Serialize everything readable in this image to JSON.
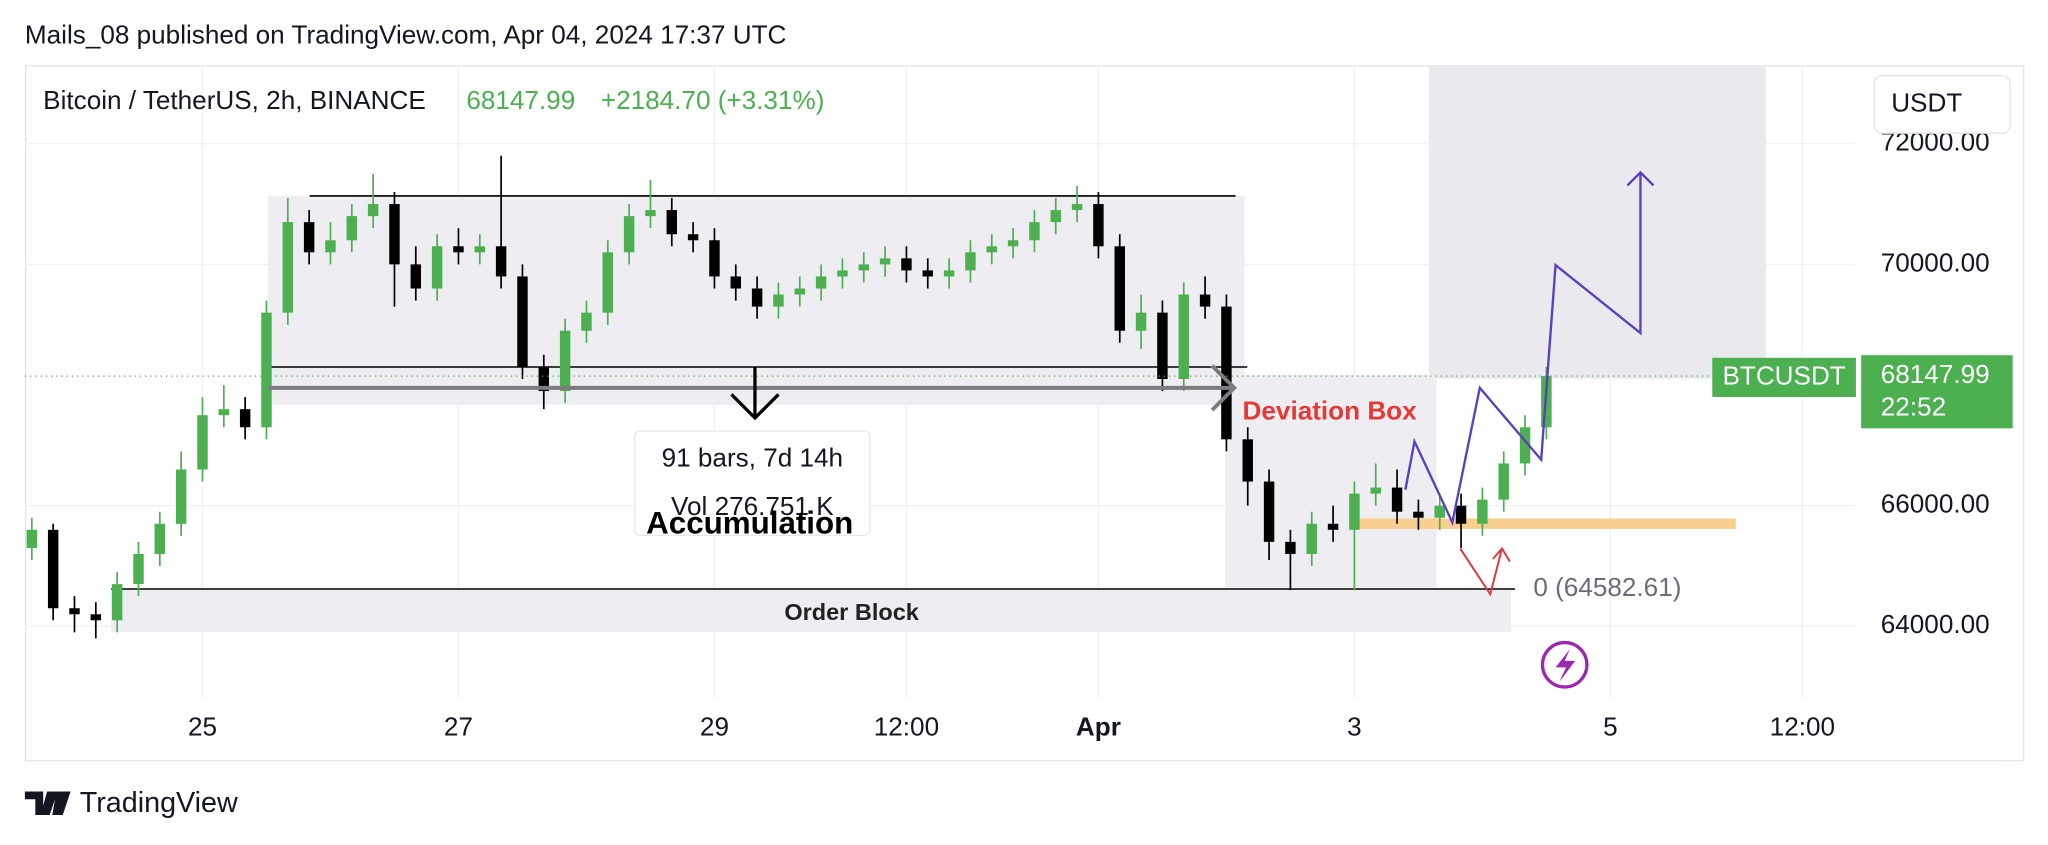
{
  "header": {
    "published": "Mails_08 published on TradingView.com, Apr 04, 2024 17:37 UTC"
  },
  "chart_data": {
    "type": "candlestick",
    "symbol": "Bitcoin / TetherUS, 2h, BINANCE",
    "last_price": 68147.99,
    "change": "+2184.70 (+3.31%)",
    "currency": "USDT",
    "price_label": "BTCUSDT",
    "countdown": "22:52",
    "up_color": "#4caf50",
    "down_color": "#000000",
    "xlim": [
      -9.3,
      333.8
    ],
    "ylim": [
      62800,
      73300
    ],
    "xticks": [
      {
        "value": 24,
        "label": "25"
      },
      {
        "value": 72,
        "label": "27"
      },
      {
        "value": 120,
        "label": "29"
      },
      {
        "value": 156,
        "label": "12:00"
      },
      {
        "value": 192,
        "label": "Apr"
      },
      {
        "value": 240,
        "label": "3"
      },
      {
        "value": 288,
        "label": "5"
      },
      {
        "value": 324,
        "label": "12:00"
      }
    ],
    "yticks": [
      {
        "value": 72000,
        "label": "72000.00"
      },
      {
        "value": 70000,
        "label": "70000.00"
      },
      {
        "value": 66000,
        "label": "66000.00"
      },
      {
        "value": 64000,
        "label": "64000.00"
      }
    ],
    "x": [
      -8,
      -4,
      0,
      4,
      8,
      12,
      16,
      20,
      24,
      28,
      32,
      36,
      40,
      44,
      48,
      52,
      56,
      60,
      64,
      68,
      72,
      76,
      80,
      84,
      88,
      92,
      96,
      100,
      104,
      108,
      112,
      116,
      120,
      124,
      128,
      132,
      136,
      140,
      144,
      148,
      152,
      156,
      160,
      164,
      168,
      172,
      176,
      180,
      184,
      188,
      192,
      196,
      200,
      204,
      208,
      212,
      216,
      220,
      224,
      228,
      232,
      236,
      240,
      244,
      248,
      252,
      256,
      260,
      264,
      268,
      272,
      276
    ],
    "open": [
      65300,
      65600,
      64300,
      64200,
      64100,
      64700,
      65200,
      65700,
      66600,
      67500,
      67600,
      67300,
      69200,
      70700,
      70200,
      70400,
      70800,
      71000,
      70000,
      69600,
      70300,
      70200,
      70300,
      69800,
      68300,
      67900,
      68900,
      69200,
      70200,
      70800,
      70900,
      70500,
      70400,
      69800,
      69600,
      69300,
      69500,
      69600,
      69800,
      69900,
      70000,
      70100,
      69900,
      69800,
      69900,
      70200,
      70300,
      70400,
      70700,
      70900,
      71000,
      70300,
      68900,
      69200,
      68100,
      69500,
      69300,
      67100,
      66400,
      65400,
      65200,
      65700,
      65600,
      66200,
      66300,
      65900,
      65800,
      66000,
      65700,
      66100,
      66700,
      67300
    ],
    "high": [
      65800,
      65700,
      64500,
      64400,
      64900,
      65400,
      65900,
      66900,
      67800,
      68000,
      67800,
      69400,
      71100,
      70900,
      70700,
      71000,
      71500,
      71200,
      70300,
      70500,
      70600,
      70500,
      71800,
      70000,
      68500,
      69100,
      69400,
      70400,
      71000,
      71400,
      71100,
      70700,
      70600,
      70000,
      69800,
      69700,
      69800,
      70000,
      70100,
      70200,
      70300,
      70300,
      70100,
      70100,
      70400,
      70500,
      70600,
      70900,
      71100,
      71300,
      71200,
      70500,
      69500,
      69400,
      69700,
      69800,
      69500,
      67300,
      66600,
      65600,
      65900,
      66000,
      66400,
      66700,
      66600,
      66100,
      66200,
      66200,
      66300,
      66900,
      67500,
      68300
    ],
    "low": [
      65100,
      64100,
      63900,
      63800,
      63900,
      64500,
      65000,
      65500,
      66400,
      67300,
      67100,
      67100,
      69000,
      70000,
      70000,
      70200,
      70600,
      69300,
      69400,
      69400,
      70000,
      70000,
      69600,
      68100,
      67600,
      67700,
      68700,
      69000,
      70000,
      70600,
      70300,
      70200,
      69600,
      69400,
      69100,
      69100,
      69300,
      69400,
      69600,
      69700,
      69800,
      69700,
      69600,
      69600,
      69700,
      70000,
      70100,
      70200,
      70500,
      70700,
      70100,
      68700,
      68600,
      67900,
      67900,
      69100,
      66900,
      66000,
      65100,
      64600,
      65000,
      65400,
      64600,
      66000,
      65700,
      65600,
      65600,
      65300,
      65500,
      65900,
      66500,
      67100
    ],
    "close": [
      65600,
      64300,
      64200,
      64100,
      64700,
      65200,
      65700,
      66600,
      67500,
      67600,
      67300,
      69200,
      70700,
      70200,
      70400,
      70800,
      71000,
      70000,
      69600,
      70300,
      70200,
      70300,
      69800,
      68300,
      67900,
      68900,
      69200,
      70200,
      70800,
      70900,
      70500,
      70400,
      69800,
      69600,
      69300,
      69500,
      69600,
      69800,
      69900,
      70000,
      70100,
      69900,
      69800,
      69900,
      70200,
      70300,
      70400,
      70700,
      70900,
      71000,
      70300,
      68900,
      69200,
      68100,
      69500,
      69300,
      67100,
      66400,
      65400,
      65200,
      65700,
      65600,
      66200,
      66300,
      65900,
      65800,
      66000,
      65700,
      66100,
      66700,
      67300,
      68147.99
    ],
    "annotations": {
      "measure_bars": "91 bars, 7d 14h",
      "measure_volume": "Vol 276.751 K",
      "accumulation": "Accumulation",
      "deviation_box": "Deviation Box",
      "order_block": "Order Block",
      "fib_level": "0 (64582.61)"
    }
  },
  "footer": {
    "brand": "TradingView"
  }
}
